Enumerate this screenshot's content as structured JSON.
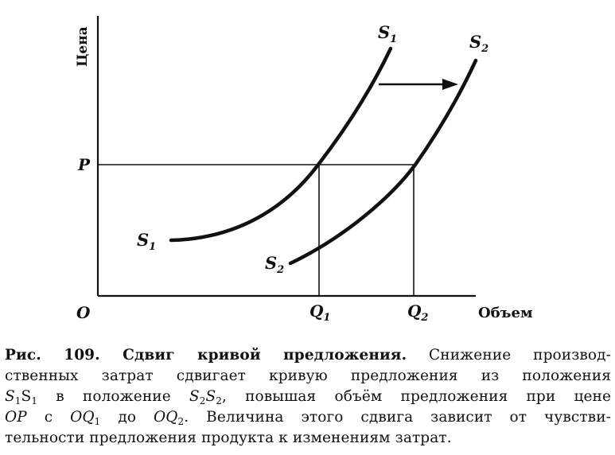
{
  "diagram": {
    "y_axis_label": "Цена",
    "x_axis_label": "Объем",
    "origin_label": "O",
    "price_label": "P",
    "q1_label": "Q",
    "q1_sub": "1",
    "q2_label": "Q",
    "q2_sub": "2",
    "curve1": {
      "label": "S",
      "sub": "1"
    },
    "curve2": {
      "label": "S",
      "sub": "2"
    },
    "shift_arrow": "right-arrow"
  },
  "caption": {
    "title": "Рис. 109. Сдвиг кривой предложения.",
    "line1_rest": " Снижение производ-",
    "line2": "ственных затрат сдвигает кривую предложения из положения",
    "line3_a": "S",
    "line3_a_sub": "1",
    "line3_b": "S",
    "line3_b_sub": "1",
    "line3_mid": " в положение ",
    "line3_c": "S",
    "line3_c_sub": "2",
    "line3_d": "S",
    "line3_d_sub": "2",
    "line3_rest": ", повышая объём предложения при цене",
    "line4_op": "OP",
    "line4_s": " с ",
    "line4_oq1": "OQ",
    "line4_oq1_sub": "1",
    "line4_do": " до ",
    "line4_oq2": "OQ",
    "line4_oq2_sub": "2",
    "line4_rest": ". Величина этого сдвига зависит от чувстви-",
    "line5": "тельности предложения продукта к изменениям затрат."
  }
}
